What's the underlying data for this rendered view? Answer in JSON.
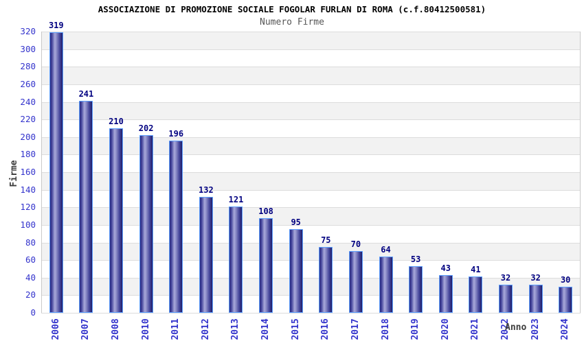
{
  "chart_data": {
    "type": "bar",
    "title": "ASSOCIAZIONE DI PROMOZIONE SOCIALE FOGOLAR FURLAN DI ROMA (c.f.80412500581)",
    "subtitle": "Numero Firme",
    "xlabel": "Anno",
    "ylabel": "Firme",
    "categories": [
      "2006",
      "2007",
      "2008",
      "2010",
      "2011",
      "2012",
      "2013",
      "2014",
      "2015",
      "2016",
      "2017",
      "2018",
      "2019",
      "2020",
      "2021",
      "2022",
      "2023",
      "2024"
    ],
    "values": [
      319,
      241,
      210,
      202,
      196,
      132,
      121,
      108,
      95,
      75,
      70,
      64,
      53,
      43,
      41,
      32,
      32,
      30
    ],
    "ylim": [
      0,
      320
    ],
    "ytick_step": 20,
    "grid": "horizontal-bands-alternating",
    "legend": "none",
    "colors": {
      "background": "#ffffff",
      "band_gray": "#f2f2f2",
      "band_white": "#ffffff",
      "gridline": "#dcdcdc",
      "plot_border": "#c9c9c9",
      "tick_label": "#3333cc",
      "value_label": "#000080",
      "bar_border": "#5c9fff",
      "axis_title": "#3c3c3c",
      "subtitle": "#555555",
      "bar_gradient_stops": [
        {
          "color": "#28287f",
          "pos": 0
        },
        {
          "color": "#45459c",
          "pos": 14
        },
        {
          "color": "#a9a9da",
          "pos": 38
        },
        {
          "color": "#8a8ac6",
          "pos": 52
        },
        {
          "color": "#44449a",
          "pos": 78
        },
        {
          "color": "#1e1e69",
          "pos": 100
        }
      ]
    }
  }
}
